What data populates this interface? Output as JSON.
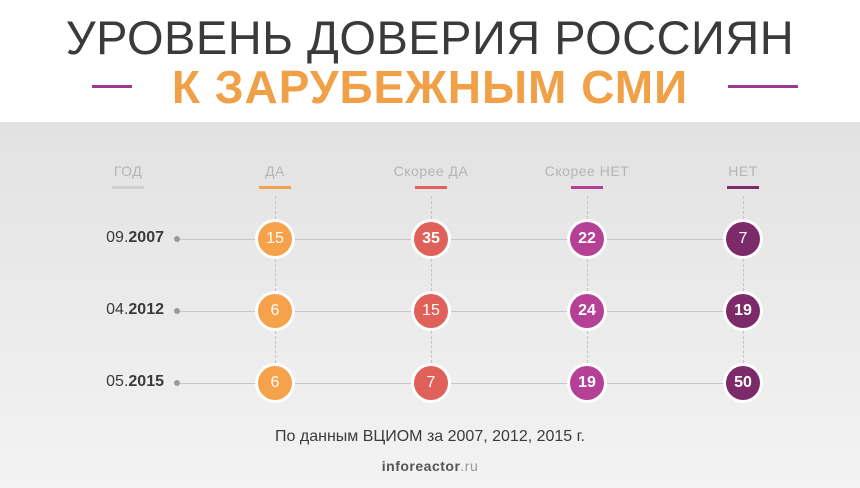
{
  "header": {
    "title_line1": "УРОВЕНЬ ДОВЕРИЯ РОССИЯН",
    "title_line2": "К ЗАРУБЕЖНЫМ СМИ"
  },
  "colors": {
    "title_accent": "#f0a046",
    "title_text": "#3a3a3a",
    "decor_line": "#9b3a8e"
  },
  "chart_data": {
    "type": "table",
    "title": "УРОВЕНЬ ДОВЕРИЯ РОССИЯН К ЗАРУБЕЖНЫМ СМИ",
    "row_header": "ГОД",
    "categories": [
      "ДА",
      "Скорее ДА",
      "Скорее НЕТ",
      "НЕТ"
    ],
    "category_colors": [
      "#f5a24a",
      "#e0605a",
      "#b54197",
      "#7d2a6a"
    ],
    "rows": [
      {
        "period": "09.",
        "year": "2007",
        "values": [
          15,
          35,
          22,
          7
        ]
      },
      {
        "period": "04.",
        "year": "2012",
        "values": [
          6,
          15,
          24,
          19
        ]
      },
      {
        "period": "05.",
        "year": "2015",
        "values": [
          6,
          7,
          19,
          50
        ]
      }
    ],
    "bold_values": [
      [
        false,
        true,
        true,
        false
      ],
      [
        false,
        false,
        true,
        true
      ],
      [
        false,
        false,
        true,
        true
      ]
    ]
  },
  "footer": {
    "source": "По данным ВЦИОМ за 2007, 2012, 2015 г.",
    "logo_name": "inforeactor",
    "logo_tld": ".ru"
  }
}
